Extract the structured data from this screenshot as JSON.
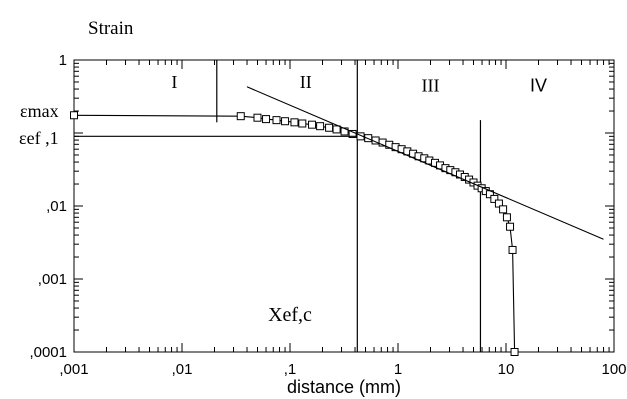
{
  "chart_data": {
    "type": "scatter",
    "title": "Strain",
    "xlabel": "distance (mm)",
    "ylabel": "",
    "xscale": "log",
    "yscale": "log",
    "xlim": [
      0.001,
      100
    ],
    "ylim": [
      0.0001,
      1
    ],
    "x_ticks": [
      {
        "value": 0.001,
        "label": ",001"
      },
      {
        "value": 0.01,
        "label": ",01"
      },
      {
        "value": 0.1,
        "label": ",1"
      },
      {
        "value": 1,
        "label": "1"
      },
      {
        "value": 10,
        "label": "10"
      },
      {
        "value": 100,
        "label": "100"
      }
    ],
    "y_ticks": [
      {
        "value": 0.0001,
        "label": ",0001"
      },
      {
        "value": 0.001,
        "label": ",001"
      },
      {
        "value": 0.01,
        "label": ",01"
      },
      {
        "value": 0.1,
        "label": ",1"
      },
      {
        "value": 1,
        "label": "1"
      }
    ],
    "grid": false,
    "series": [
      {
        "type": "scatter-line",
        "marker": "open-square",
        "x": [
          0.001,
          0.035,
          0.05,
          0.06,
          0.075,
          0.09,
          0.11,
          0.13,
          0.16,
          0.19,
          0.23,
          0.27,
          0.32,
          0.38,
          0.45,
          0.53,
          0.62,
          0.72,
          0.83,
          0.95,
          1.08,
          1.22,
          1.38,
          1.55,
          1.75,
          1.95,
          2.2,
          2.45,
          2.75,
          3.05,
          3.4,
          3.75,
          4.15,
          4.55,
          5.0,
          5.45,
          5.95,
          6.5,
          7.1,
          7.8,
          8.6,
          9.4,
          10.2,
          10.9,
          11.5,
          12.0
        ],
        "y": [
          0.175,
          0.17,
          0.162,
          0.155,
          0.15,
          0.145,
          0.14,
          0.135,
          0.13,
          0.124,
          0.118,
          0.112,
          0.105,
          0.097,
          0.09,
          0.085,
          0.079,
          0.074,
          0.069,
          0.064,
          0.06,
          0.056,
          0.052,
          0.048,
          0.045,
          0.042,
          0.039,
          0.036,
          0.033,
          0.031,
          0.029,
          0.027,
          0.025,
          0.023,
          0.021,
          0.019,
          0.0175,
          0.016,
          0.0145,
          0.0125,
          0.0108,
          0.009,
          0.007,
          0.0052,
          0.0025,
          0.0001
        ]
      },
      {
        "type": "line",
        "x": [
          0.04,
          80
        ],
        "y": [
          0.43,
          0.0035
        ]
      },
      {
        "type": "line",
        "x": [
          0.001,
          0.42
        ],
        "y": [
          0.09,
          0.09
        ]
      }
    ],
    "vertical_lines": [
      {
        "x": 0.021,
        "y_from": 0.14,
        "y_to": 1
      },
      {
        "x": 0.42,
        "y_from": 0.0001,
        "y_to": 1
      },
      {
        "x": 5.8,
        "y_from": 0.0001,
        "y_to": 0.15
      }
    ],
    "annotations": [
      {
        "key": "region_i",
        "text": "I",
        "x": 0.0085,
        "y": 0.5
      },
      {
        "key": "region_ii",
        "text": "II",
        "x": 0.14,
        "y": 0.5
      },
      {
        "key": "region_iii",
        "text": "III",
        "x": 2.0,
        "y": 0.45
      },
      {
        "key": "region_iv",
        "text": "IV",
        "x": 20,
        "y": 0.45
      },
      {
        "key": "eps_max",
        "text": "εmax",
        "x": 0.00072,
        "y": 0.2
      },
      {
        "key": "eps_ef",
        "text": "εef ,1",
        "x": 0.00072,
        "y": 0.085
      },
      {
        "key": "x_ef",
        "text": "Xef,c",
        "x": 0.1,
        "y": 0.00032
      }
    ]
  }
}
